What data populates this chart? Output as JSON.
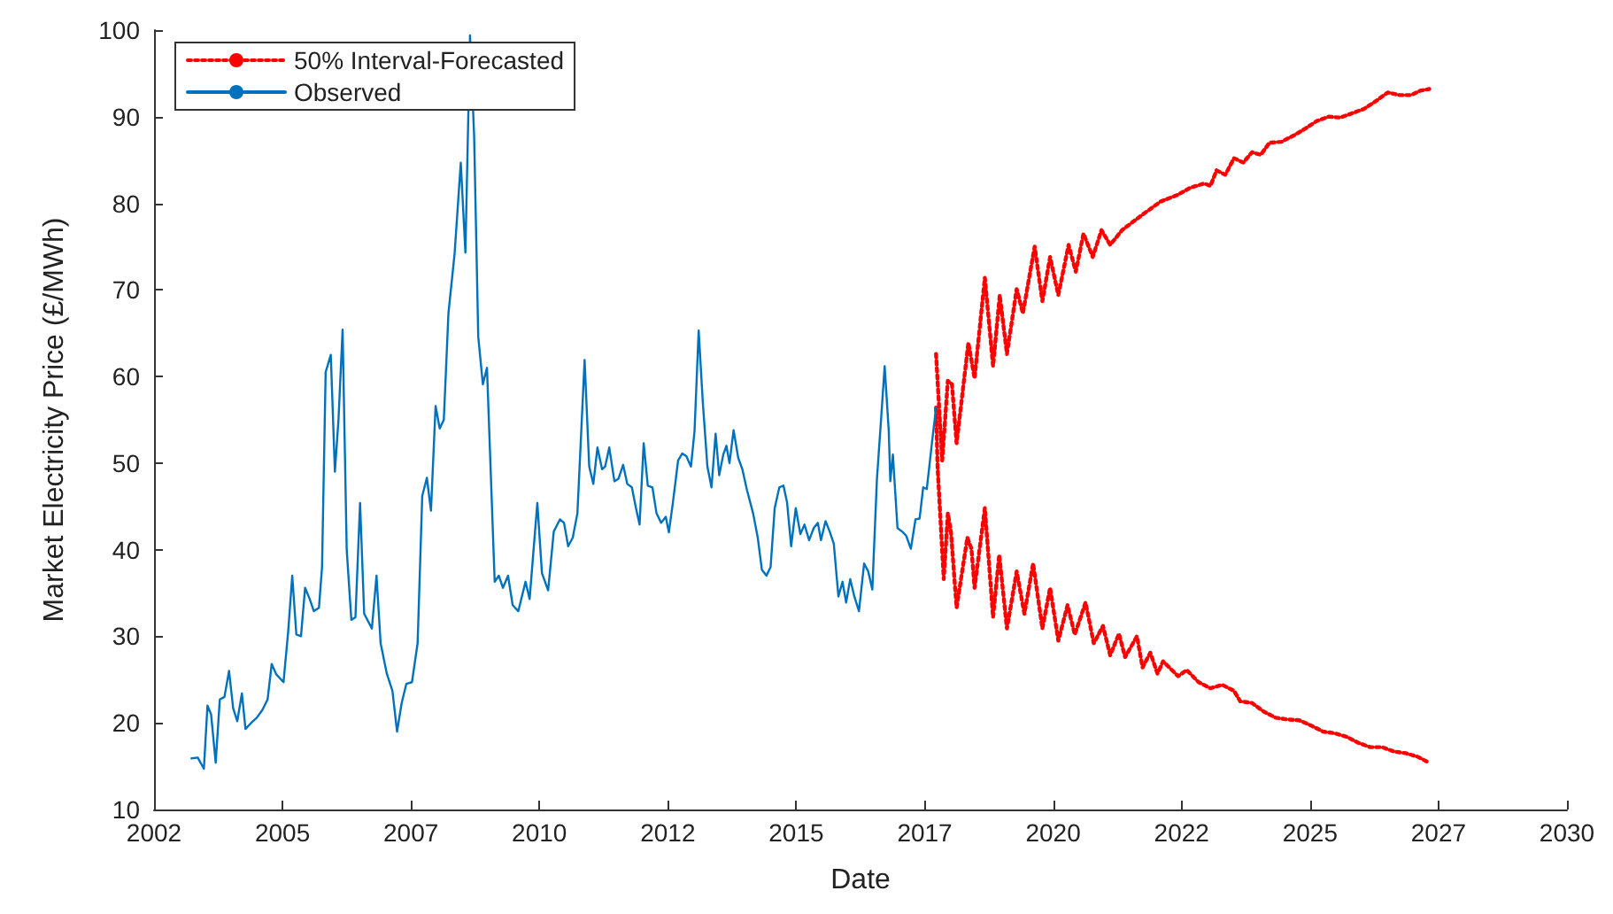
{
  "chart_data": {
    "type": "line",
    "xlabel": "Date",
    "ylabel": "Market Electricity Price (£/MWh)",
    "xlim": [
      2002.5,
      2030
    ],
    "xticks": [
      {
        "value": 2002.5,
        "label": "2002"
      },
      {
        "value": 2005,
        "label": "2005"
      },
      {
        "value": 2007.5,
        "label": "2007"
      },
      {
        "value": 2010,
        "label": "2010"
      },
      {
        "value": 2012.5,
        "label": "2012"
      },
      {
        "value": 2015,
        "label": "2015"
      },
      {
        "value": 2017.5,
        "label": "2017"
      },
      {
        "value": 2020,
        "label": "2020"
      },
      {
        "value": 2022.5,
        "label": "2022"
      },
      {
        "value": 2025,
        "label": "2025"
      },
      {
        "value": 2027.5,
        "label": "2027"
      },
      {
        "value": 2030,
        "label": "2030"
      }
    ],
    "ylim": [
      10,
      100
    ],
    "yticks": [
      10,
      20,
      30,
      40,
      50,
      60,
      70,
      80,
      90,
      100
    ],
    "grid": false,
    "legend": "top left",
    "series": [
      {
        "name": "50% Interval-Forecasted",
        "color": "#ff0000",
        "line_style": "dotted",
        "x": [
          2017.72,
          2017.84,
          2017.95,
          2018.03,
          2018.12,
          2018.35,
          2018.47,
          2018.67,
          2018.83,
          2018.96,
          2019.1,
          2019.29,
          2019.41,
          2019.64,
          2019.79,
          2019.94,
          2020.1,
          2020.3,
          2020.44,
          2020.59,
          2020.77,
          2020.94,
          2021.11,
          2021.34,
          2021.74,
          2022.09,
          2022.43,
          2022.67,
          2022.94,
          2023.06,
          2023.18,
          2023.35,
          2023.52,
          2023.7,
          2023.87,
          2024.04,
          2024.21,
          2024.44,
          2024.67,
          2024.9,
          2025.13,
          2025.36,
          2025.59,
          2025.82,
          2026.05,
          2026.28,
          2026.51,
          2026.74,
          2026.97,
          2027.14,
          2027.32
        ],
        "values": [
          62.6,
          50.3,
          59.5,
          59.1,
          52.3,
          63.9,
          59.8,
          71.4,
          61.2,
          69.4,
          62.6,
          70.1,
          67.3,
          75,
          68.7,
          73.8,
          69.4,
          75.2,
          72.1,
          76.5,
          73.8,
          76.9,
          75.2,
          76.9,
          78.7,
          80.2,
          81,
          81.8,
          82.3,
          82,
          83.8,
          83.3,
          85.2,
          84.7,
          85.9,
          85.6,
          87,
          87.1,
          87.8,
          88.6,
          89.5,
          90,
          89.9,
          90.4,
          90.9,
          91.8,
          92.8,
          92.5,
          92.5,
          93,
          93.2
        ]
      },
      {
        "color": "#ff0000",
        "line_style": "dotted",
        "x": [
          2017.72,
          2017.75,
          2017.87,
          2017.95,
          2018.01,
          2018.12,
          2018.33,
          2018.41,
          2018.47,
          2018.67,
          2018.83,
          2018.95,
          2019.1,
          2019.29,
          2019.44,
          2019.61,
          2019.79,
          2019.94,
          2020.1,
          2020.28,
          2020.42,
          2020.63,
          2020.79,
          2020.97,
          2021.11,
          2021.28,
          2021.4,
          2021.63,
          2021.74,
          2021.89,
          2022.03,
          2022.14,
          2022.43,
          2022.6,
          2022.83,
          2023.06,
          2023.29,
          2023.52,
          2023.64,
          2023.87,
          2024.1,
          2024.33,
          2024.56,
          2024.79,
          2025.02,
          2025.25,
          2025.48,
          2025.71,
          2025.94,
          2026.17,
          2026.4,
          2026.63,
          2026.86,
          2027.09,
          2027.32
        ],
        "values": [
          56.4,
          49.6,
          36.6,
          44.2,
          42.1,
          33.3,
          41.4,
          40.1,
          35.6,
          44.8,
          32.2,
          39.4,
          30.9,
          37.5,
          32.6,
          38.4,
          30.9,
          35.6,
          29.5,
          33.6,
          30.2,
          33.9,
          29.2,
          31.2,
          27.8,
          30.3,
          27.6,
          30,
          26.4,
          28.1,
          25.7,
          27.1,
          25.4,
          26.1,
          24.7,
          24,
          24.4,
          23.7,
          22.5,
          22.3,
          21.3,
          20.6,
          20.4,
          20.3,
          19.7,
          19,
          18.8,
          18.4,
          17.7,
          17.2,
          17.2,
          16.7,
          16.5,
          16.1,
          15.4
        ]
      },
      {
        "name": "Observed",
        "color": "#0072bd",
        "line_style": "solid",
        "x": [
          2003.23,
          2003.35,
          2003.47,
          2003.54,
          2003.61,
          2003.7,
          2003.78,
          2003.87,
          2003.96,
          2004.04,
          2004.12,
          2004.21,
          2004.28,
          2004.39,
          2004.5,
          2004.61,
          2004.71,
          2004.79,
          2004.88,
          2005.02,
          2005.11,
          2005.19,
          2005.27,
          2005.36,
          2005.44,
          2005.53,
          2005.61,
          2005.71,
          2005.77,
          2005.84,
          2005.94,
          2006.02,
          2006.09,
          2006.17,
          2006.25,
          2006.34,
          2006.42,
          2006.51,
          2006.59,
          2006.74,
          2006.83,
          2006.91,
          2007.03,
          2007.14,
          2007.23,
          2007.32,
          2007.41,
          2007.52,
          2007.63,
          2007.72,
          2007.81,
          2007.89,
          2007.98,
          2008.06,
          2008.14,
          2008.23,
          2008.35,
          2008.47,
          2008.56,
          2008.65,
          2008.73,
          2008.81,
          2008.9,
          2008.98,
          2009.13,
          2009.21,
          2009.29,
          2009.39,
          2009.48,
          2009.59,
          2009.73,
          2009.81,
          2009.96,
          2010.05,
          2010.17,
          2010.28,
          2010.4,
          2010.48,
          2010.56,
          2010.65,
          2010.74,
          2010.88,
          2010.97,
          2011.05,
          2011.13,
          2011.22,
          2011.28,
          2011.36,
          2011.46,
          2011.54,
          2011.63,
          2011.71,
          2011.8,
          2011.88,
          2011.95,
          2012.03,
          2012.11,
          2012.2,
          2012.28,
          2012.37,
          2012.46,
          2012.52,
          2012.6,
          2012.7,
          2012.78,
          2012.86,
          2012.95,
          2013.02,
          2013.1,
          2013.18,
          2013.27,
          2013.35,
          2013.43,
          2013.5,
          2013.58,
          2013.64,
          2013.7,
          2013.78,
          2013.87,
          2013.95,
          2014.04,
          2014.16,
          2014.25,
          2014.33,
          2014.42,
          2014.5,
          2014.58,
          2014.67,
          2014.75,
          2014.82,
          2014.9,
          2014.99,
          2015.08,
          2015.16,
          2015.25,
          2015.34,
          2015.42,
          2015.48,
          2015.57,
          2015.65,
          2015.73,
          2015.82,
          2015.9,
          2015.97,
          2016.05,
          2016.13,
          2016.22,
          2016.32,
          2016.4,
          2016.48,
          2016.57,
          2016.65,
          2016.72,
          2016.8,
          2016.83,
          2016.88,
          2016.97,
          2017.06,
          2017.14,
          2017.23,
          2017.32,
          2017.4,
          2017.47,
          2017.54,
          2017.64,
          2017.72
        ],
        "values": [
          15.9,
          16,
          14.7,
          22,
          21,
          15.4,
          22.7,
          23,
          26,
          21.7,
          20.2,
          23.4,
          19.3,
          20,
          20.6,
          21.5,
          22.7,
          26.8,
          25.6,
          24.7,
          30.5,
          37,
          30.2,
          30,
          35.6,
          34.3,
          32.9,
          33.3,
          38,
          60.5,
          62.5,
          49,
          55,
          65.4,
          40,
          31.9,
          32.2,
          45.4,
          32.6,
          30.9,
          37,
          29.2,
          25.7,
          23.7,
          19,
          22.3,
          24.5,
          24.7,
          29.2,
          46.2,
          48.3,
          44.5,
          56.6,
          54,
          55,
          67.3,
          74.2,
          84.7,
          74.3,
          99.4,
          87.8,
          64.6,
          59.1,
          61,
          36.3,
          37,
          35.6,
          37,
          33.6,
          32.9,
          36.3,
          34.3,
          45.4,
          37.3,
          35.3,
          42.1,
          43.5,
          43.1,
          40.4,
          41.4,
          44.2,
          61.9,
          49.6,
          47.6,
          51.8,
          49.3,
          49.6,
          51.8,
          47.9,
          48.2,
          49.8,
          47.6,
          47.2,
          44.8,
          42.9,
          52.3,
          47.4,
          47.2,
          44.2,
          43.1,
          43.8,
          42,
          45.5,
          50.3,
          51.1,
          50.8,
          49.6,
          53.7,
          65.3,
          57.1,
          49.6,
          47.2,
          53.4,
          48.6,
          51,
          52,
          50,
          53.8,
          50.6,
          49.3,
          46.9,
          44.2,
          41.4,
          37.7,
          37,
          38,
          44.8,
          47.2,
          47.4,
          45.5,
          40.4,
          44.8,
          41.8,
          42.9,
          41.1,
          42.5,
          43.1,
          41.1,
          43.3,
          42.1,
          40.7,
          34.6,
          36.3,
          33.9,
          36.6,
          34.6,
          32.9,
          38.4,
          37.5,
          35.4,
          48.2,
          55,
          61.2,
          53.7,
          47.9,
          51,
          42.5,
          42.1,
          41.6,
          40.1,
          43.5,
          43.6,
          47.2,
          47,
          52.3,
          56.4
        ]
      }
    ]
  }
}
